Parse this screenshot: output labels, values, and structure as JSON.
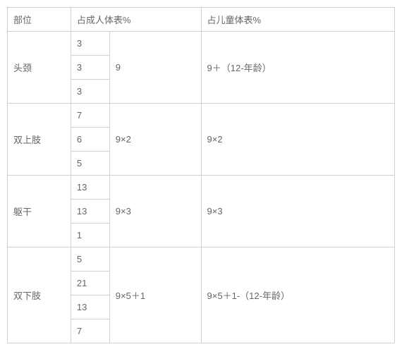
{
  "type": "table",
  "colors": {
    "border": "#d0d0d0",
    "text": "#666666",
    "background": "#ffffff"
  },
  "typography": {
    "fontsize": 13,
    "font_family": "Microsoft YaHei"
  },
  "header": {
    "part": "部位",
    "adult": "占成人体表%",
    "child": "占儿童体表%"
  },
  "rows": [
    {
      "part": "头颈",
      "subs": [
        "3",
        "3",
        "3"
      ],
      "adult": "9",
      "child": "9＋（12-年龄）"
    },
    {
      "part": "双上肢",
      "subs": [
        "7",
        "6",
        "5"
      ],
      "adult": "9×2",
      "child": "9×2"
    },
    {
      "part": "躯干",
      "subs": [
        "13",
        "13",
        "1"
      ],
      "adult": "9×3",
      "child": "9×3"
    },
    {
      "part": "双下肢",
      "subs": [
        "5",
        "21",
        "13",
        "7"
      ],
      "adult": "9×5＋1",
      "child": "9×5＋1-（12-年龄）"
    }
  ]
}
